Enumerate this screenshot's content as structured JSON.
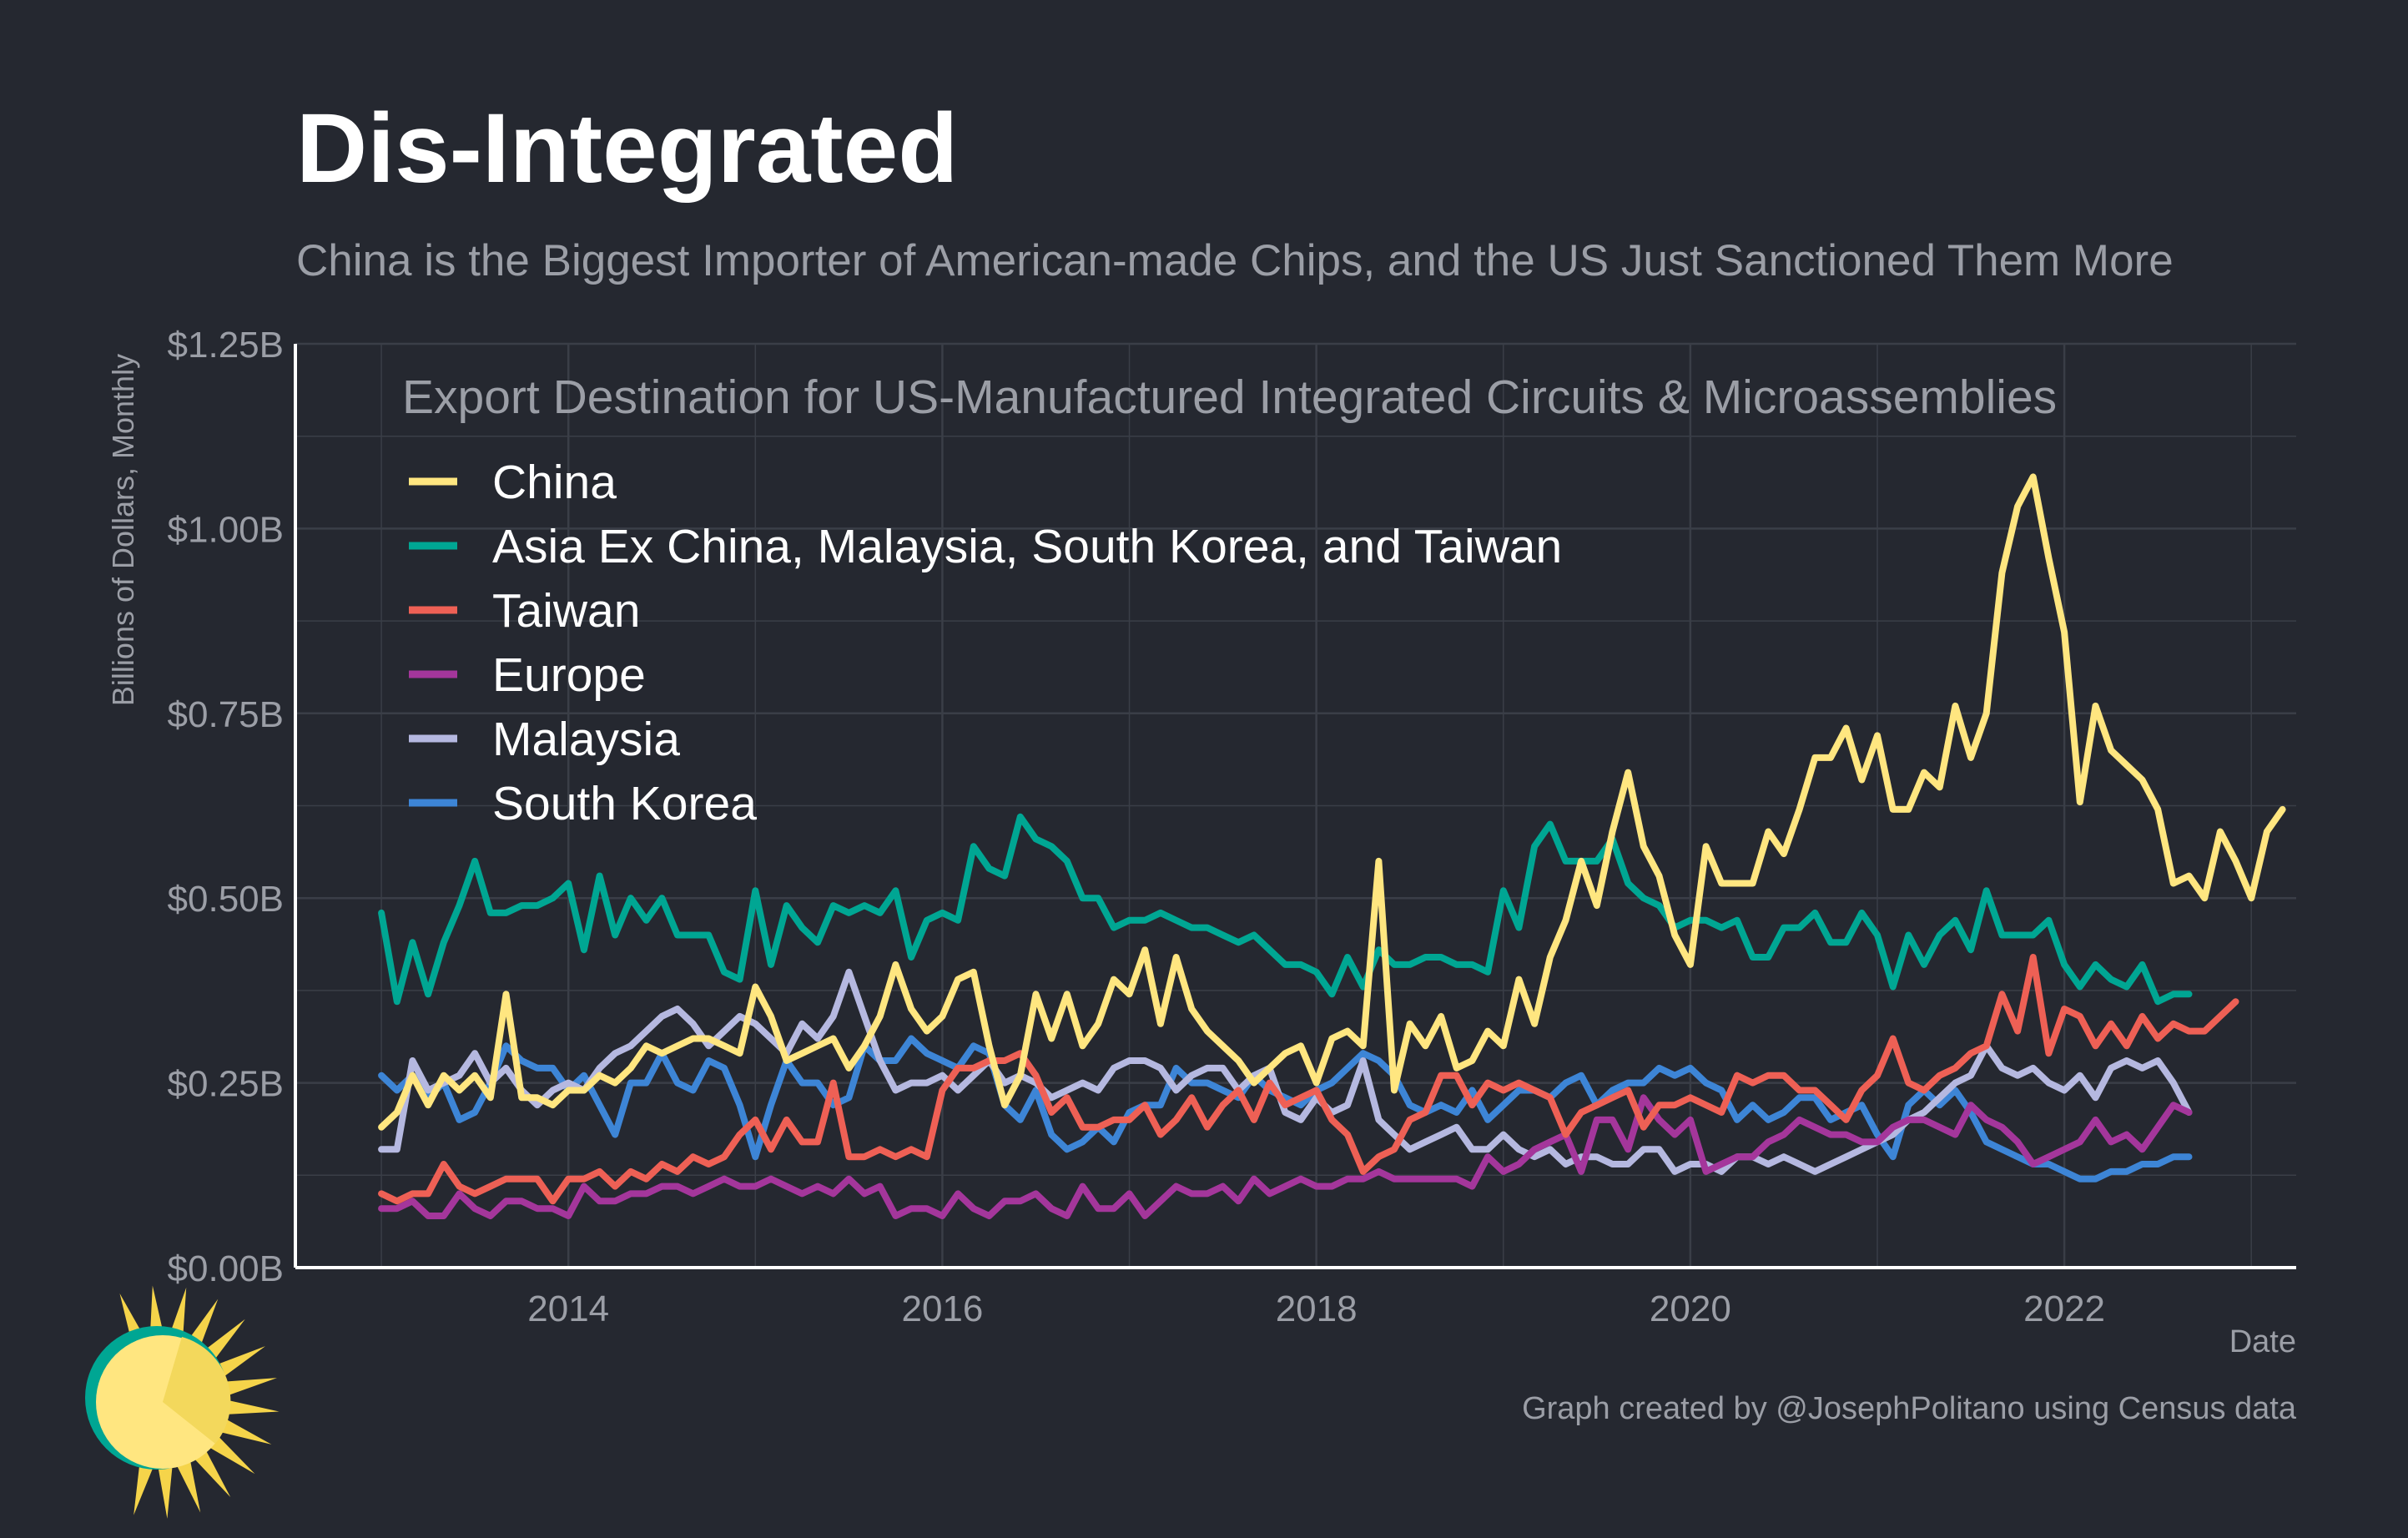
{
  "chart_data": {
    "type": "line",
    "title": "Dis-Integrated",
    "subtitle": "China is the Biggest Importer of American-made Chips, and the US Just Sanctioned Them More",
    "legend_title": "Export Destination for US-Manufactured Integrated Circuits & Microassemblies",
    "legend_position": "top-left",
    "xlabel": "Date",
    "ylabel": "Billions of Dollars, Monthly",
    "caption": "Graph created by @JosephPolitano using Census data",
    "grid": true,
    "xlim": [
      2012.54,
      2023.24
    ],
    "ylim": [
      0,
      1.25
    ],
    "x_ticks": [
      2014,
      2016,
      2018,
      2020,
      2022
    ],
    "x_tick_labels": [
      "2014",
      "2016",
      "2018",
      "2020",
      "2022"
    ],
    "y_ticks": [
      0,
      0.25,
      0.5,
      0.75,
      1.0,
      1.25
    ],
    "y_tick_labels": [
      "$0.00B",
      "$0.25B",
      "$0.50B",
      "$0.75B",
      "$1.00B",
      "$1.25B"
    ],
    "x_start": 2013.0,
    "x_step_months": 1,
    "series": [
      {
        "name": "China",
        "color": "#ffe680",
        "values": [
          0.19,
          0.21,
          0.26,
          0.22,
          0.26,
          0.24,
          0.26,
          0.23,
          0.37,
          0.23,
          0.23,
          0.22,
          0.24,
          0.24,
          0.26,
          0.25,
          0.27,
          0.3,
          0.29,
          0.3,
          0.31,
          0.31,
          0.3,
          0.29,
          0.38,
          0.34,
          0.28,
          0.29,
          0.3,
          0.31,
          0.27,
          0.3,
          0.34,
          0.41,
          0.35,
          0.32,
          0.34,
          0.39,
          0.4,
          0.3,
          0.22,
          0.26,
          0.37,
          0.31,
          0.37,
          0.3,
          0.33,
          0.39,
          0.37,
          0.43,
          0.33,
          0.42,
          0.35,
          0.32,
          0.3,
          0.28,
          0.25,
          0.27,
          0.29,
          0.3,
          0.25,
          0.31,
          0.32,
          0.3,
          0.55,
          0.24,
          0.33,
          0.3,
          0.34,
          0.27,
          0.28,
          0.32,
          0.3,
          0.39,
          0.33,
          0.42,
          0.47,
          0.55,
          0.49,
          0.59,
          0.67,
          0.57,
          0.53,
          0.45,
          0.41,
          0.57,
          0.52,
          0.52,
          0.52,
          0.59,
          0.56,
          0.62,
          0.69,
          0.69,
          0.73,
          0.66,
          0.72,
          0.62,
          0.62,
          0.67,
          0.65,
          0.76,
          0.69,
          0.75,
          0.94,
          1.03,
          1.07,
          0.96,
          0.86,
          0.63,
          0.76,
          0.7,
          0.68,
          0.66,
          0.62,
          0.52,
          0.53,
          0.5,
          0.59,
          0.55,
          0.5,
          0.59,
          0.62
        ]
      },
      {
        "name": "Asia Ex China, Malaysia, South Korea, and Taiwan",
        "color": "#00a693",
        "values": [
          0.48,
          0.36,
          0.44,
          0.37,
          0.44,
          0.49,
          0.55,
          0.48,
          0.48,
          0.49,
          0.49,
          0.5,
          0.52,
          0.43,
          0.53,
          0.45,
          0.5,
          0.47,
          0.5,
          0.45,
          0.45,
          0.45,
          0.4,
          0.39,
          0.51,
          0.41,
          0.49,
          0.46,
          0.44,
          0.49,
          0.48,
          0.49,
          0.48,
          0.51,
          0.42,
          0.47,
          0.48,
          0.47,
          0.57,
          0.54,
          0.53,
          0.61,
          0.58,
          0.57,
          0.55,
          0.5,
          0.5,
          0.46,
          0.47,
          0.47,
          0.48,
          0.47,
          0.46,
          0.46,
          0.45,
          0.44,
          0.45,
          0.43,
          0.41,
          0.41,
          0.4,
          0.37,
          0.42,
          0.38,
          0.43,
          0.41,
          0.41,
          0.42,
          0.42,
          0.41,
          0.41,
          0.4,
          0.51,
          0.46,
          0.57,
          0.6,
          0.55,
          0.55,
          0.55,
          0.58,
          0.52,
          0.5,
          0.49,
          0.46,
          0.47,
          0.47,
          0.46,
          0.47,
          0.42,
          0.42,
          0.46,
          0.46,
          0.48,
          0.44,
          0.44,
          0.48,
          0.45,
          0.38,
          0.45,
          0.41,
          0.45,
          0.47,
          0.43,
          0.51,
          0.45,
          0.45,
          0.45,
          0.47,
          0.41,
          0.38,
          0.41,
          0.39,
          0.38,
          0.41,
          0.36,
          0.37,
          0.37
        ]
      },
      {
        "name": "Taiwan",
        "color": "#ee6055",
        "values": [
          0.1,
          0.09,
          0.1,
          0.1,
          0.14,
          0.11,
          0.1,
          0.11,
          0.12,
          0.12,
          0.12,
          0.09,
          0.12,
          0.12,
          0.13,
          0.11,
          0.13,
          0.12,
          0.14,
          0.13,
          0.15,
          0.14,
          0.15,
          0.18,
          0.2,
          0.16,
          0.2,
          0.17,
          0.17,
          0.25,
          0.15,
          0.15,
          0.16,
          0.15,
          0.16,
          0.15,
          0.24,
          0.27,
          0.27,
          0.28,
          0.28,
          0.29,
          0.26,
          0.21,
          0.23,
          0.19,
          0.19,
          0.2,
          0.2,
          0.22,
          0.18,
          0.2,
          0.23,
          0.19,
          0.22,
          0.24,
          0.2,
          0.25,
          0.22,
          0.23,
          0.24,
          0.2,
          0.18,
          0.13,
          0.15,
          0.16,
          0.2,
          0.21,
          0.26,
          0.26,
          0.22,
          0.25,
          0.24,
          0.25,
          0.24,
          0.23,
          0.18,
          0.21,
          0.22,
          0.23,
          0.24,
          0.19,
          0.22,
          0.22,
          0.23,
          0.22,
          0.21,
          0.26,
          0.25,
          0.26,
          0.26,
          0.24,
          0.24,
          0.22,
          0.2,
          0.24,
          0.26,
          0.31,
          0.25,
          0.24,
          0.26,
          0.27,
          0.29,
          0.3,
          0.37,
          0.32,
          0.42,
          0.29,
          0.35,
          0.34,
          0.3,
          0.33,
          0.3,
          0.34,
          0.31,
          0.33,
          0.32,
          0.32,
          0.34,
          0.36
        ]
      },
      {
        "name": "Europe",
        "color": "#a4369b",
        "values": [
          0.08,
          0.08,
          0.09,
          0.07,
          0.07,
          0.1,
          0.08,
          0.07,
          0.09,
          0.09,
          0.08,
          0.08,
          0.07,
          0.11,
          0.09,
          0.09,
          0.1,
          0.1,
          0.11,
          0.11,
          0.1,
          0.11,
          0.12,
          0.11,
          0.11,
          0.12,
          0.11,
          0.1,
          0.11,
          0.1,
          0.12,
          0.1,
          0.11,
          0.07,
          0.08,
          0.08,
          0.07,
          0.1,
          0.08,
          0.07,
          0.09,
          0.09,
          0.1,
          0.08,
          0.07,
          0.11,
          0.08,
          0.08,
          0.1,
          0.07,
          0.09,
          0.11,
          0.1,
          0.1,
          0.11,
          0.09,
          0.12,
          0.1,
          0.11,
          0.12,
          0.11,
          0.11,
          0.12,
          0.12,
          0.13,
          0.12,
          0.12,
          0.12,
          0.12,
          0.12,
          0.11,
          0.15,
          0.13,
          0.14,
          0.16,
          0.17,
          0.18,
          0.13,
          0.2,
          0.2,
          0.16,
          0.23,
          0.2,
          0.18,
          0.2,
          0.13,
          0.14,
          0.15,
          0.15,
          0.17,
          0.18,
          0.2,
          0.19,
          0.18,
          0.18,
          0.17,
          0.17,
          0.19,
          0.2,
          0.2,
          0.19,
          0.18,
          0.22,
          0.2,
          0.19,
          0.17,
          0.14,
          0.15,
          0.16,
          0.17,
          0.2,
          0.17,
          0.18,
          0.16,
          0.19,
          0.22,
          0.21
        ]
      },
      {
        "name": "Malaysia",
        "color": "#b5b8e0",
        "values": [
          0.16,
          0.16,
          0.28,
          0.24,
          0.25,
          0.26,
          0.29,
          0.25,
          0.27,
          0.24,
          0.22,
          0.24,
          0.25,
          0.24,
          0.27,
          0.29,
          0.3,
          0.32,
          0.34,
          0.35,
          0.33,
          0.3,
          0.32,
          0.34,
          0.33,
          0.31,
          0.29,
          0.33,
          0.31,
          0.34,
          0.4,
          0.34,
          0.28,
          0.24,
          0.25,
          0.25,
          0.26,
          0.24,
          0.26,
          0.28,
          0.25,
          0.26,
          0.25,
          0.23,
          0.24,
          0.25,
          0.24,
          0.27,
          0.28,
          0.28,
          0.27,
          0.24,
          0.26,
          0.27,
          0.27,
          0.24,
          0.26,
          0.27,
          0.21,
          0.2,
          0.23,
          0.21,
          0.22,
          0.28,
          0.2,
          0.18,
          0.16,
          0.17,
          0.18,
          0.19,
          0.16,
          0.16,
          0.18,
          0.16,
          0.15,
          0.16,
          0.14,
          0.15,
          0.15,
          0.14,
          0.14,
          0.16,
          0.16,
          0.13,
          0.14,
          0.14,
          0.13,
          0.15,
          0.15,
          0.14,
          0.15,
          0.14,
          0.13,
          0.14,
          0.15,
          0.16,
          0.17,
          0.18,
          0.2,
          0.21,
          0.23,
          0.25,
          0.26,
          0.3,
          0.27,
          0.26,
          0.27,
          0.25,
          0.24,
          0.26,
          0.23,
          0.27,
          0.28,
          0.27,
          0.28,
          0.25,
          0.21
        ]
      },
      {
        "name": "South Korea",
        "color": "#3d85d6",
        "values": [
          0.26,
          0.24,
          0.26,
          0.23,
          0.25,
          0.2,
          0.21,
          0.25,
          0.3,
          0.28,
          0.27,
          0.27,
          0.24,
          0.26,
          0.22,
          0.18,
          0.25,
          0.25,
          0.29,
          0.25,
          0.24,
          0.28,
          0.27,
          0.22,
          0.15,
          0.22,
          0.28,
          0.25,
          0.25,
          0.22,
          0.23,
          0.3,
          0.28,
          0.28,
          0.31,
          0.29,
          0.28,
          0.27,
          0.3,
          0.29,
          0.22,
          0.2,
          0.24,
          0.18,
          0.16,
          0.17,
          0.19,
          0.17,
          0.21,
          0.22,
          0.22,
          0.27,
          0.25,
          0.25,
          0.24,
          0.23,
          0.26,
          0.24,
          0.23,
          0.22,
          0.24,
          0.25,
          0.27,
          0.29,
          0.28,
          0.26,
          0.22,
          0.21,
          0.22,
          0.21,
          0.24,
          0.2,
          0.22,
          0.24,
          0.24,
          0.23,
          0.25,
          0.26,
          0.22,
          0.24,
          0.25,
          0.25,
          0.27,
          0.26,
          0.27,
          0.25,
          0.24,
          0.2,
          0.22,
          0.2,
          0.21,
          0.23,
          0.23,
          0.2,
          0.21,
          0.22,
          0.18,
          0.15,
          0.22,
          0.24,
          0.22,
          0.24,
          0.21,
          0.17,
          0.16,
          0.15,
          0.14,
          0.14,
          0.13,
          0.12,
          0.12,
          0.13,
          0.13,
          0.14,
          0.14,
          0.15,
          0.15
        ]
      }
    ]
  },
  "logo": {
    "icon": "sun-icon",
    "colors": {
      "ring": "#00a693",
      "face": "#ffe680",
      "rays": "#f5d44a"
    }
  }
}
